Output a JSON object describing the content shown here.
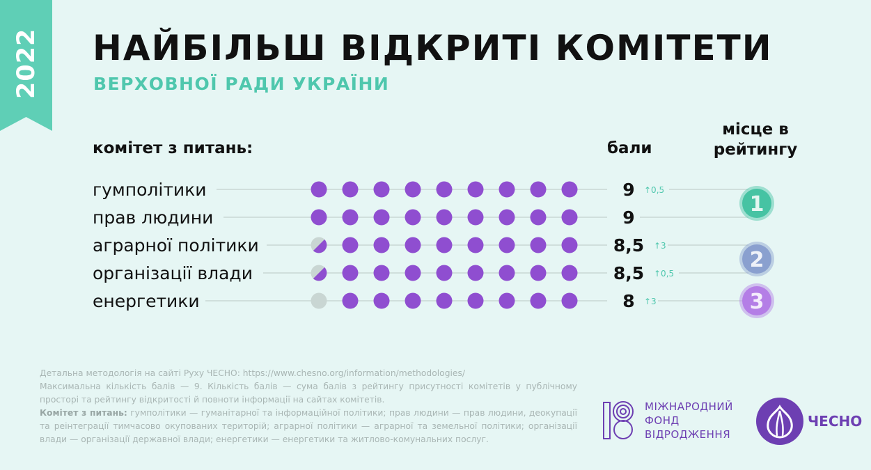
{
  "header": {
    "year": "2022",
    "title": "НАЙБІЛЬШ ВІДКРИТІ КОМІТЕТИ",
    "subtitle": "ВЕРХОВНОЇ РАДИ УКРАЇНИ"
  },
  "columns": {
    "committee": "комітет з питань:",
    "score": "бали",
    "rank": "місце в рейтингу"
  },
  "colors": {
    "filled": "#8f4ed0",
    "empty": "#c9d6d3",
    "accent": "#4fc7ad",
    "rank1": "#46c3a3",
    "rank2": "#8aa0cf",
    "rank3": "#b47ee6"
  },
  "chart_data": {
    "type": "dot-matrix",
    "max_value": 9,
    "categories": [
      "гумполітики",
      "прав людини",
      "аграрної політики",
      "організації влади",
      "енергетики"
    ],
    "values": [
      9,
      9,
      8.5,
      8.5,
      8
    ],
    "value_labels": [
      "9",
      "9",
      "8,5",
      "8,5",
      "8"
    ],
    "changes": [
      "0,5",
      "",
      "3",
      "0,5",
      "3"
    ],
    "ranks": [
      {
        "rank": "1",
        "rows": [
          0,
          1
        ]
      },
      {
        "rank": "2",
        "rows": [
          2,
          3
        ]
      },
      {
        "rank": "3",
        "rows": [
          4
        ]
      }
    ]
  },
  "footer": {
    "line1": "Детальна методологія на сайті Руху ЧЕСНО: https://www.chesno.org/information/methodologies/",
    "line2": "Максимальна кількість балів — 9. Кількість балів — сума балів з рейтингу присутності комітетів у публічному просторі та рейтингу відкритості й повноти інформації на сайтах комітетів.",
    "legend_label": "Комітет з питань:",
    "legend_text": " гумполітики — гуманітарної та інформаційної політики; прав людини — прав людини, деокупації та реінтеграції тимчасово окупованих територій; аграрної політики — аграрної та земельної політики; організації влади — організації державної влади; енергетики — енергетики та житлово-комунальних послуг."
  },
  "logos": {
    "ifd": "МІЖНАРОДНИЙ ФОНД ВІДРОДЖЕННЯ",
    "ifd_lines": [
      "МІЖНАРОДНИЙ",
      "ФОНД",
      "ВІДРОДЖЕННЯ"
    ],
    "chesno": "ЧЕСНО"
  }
}
